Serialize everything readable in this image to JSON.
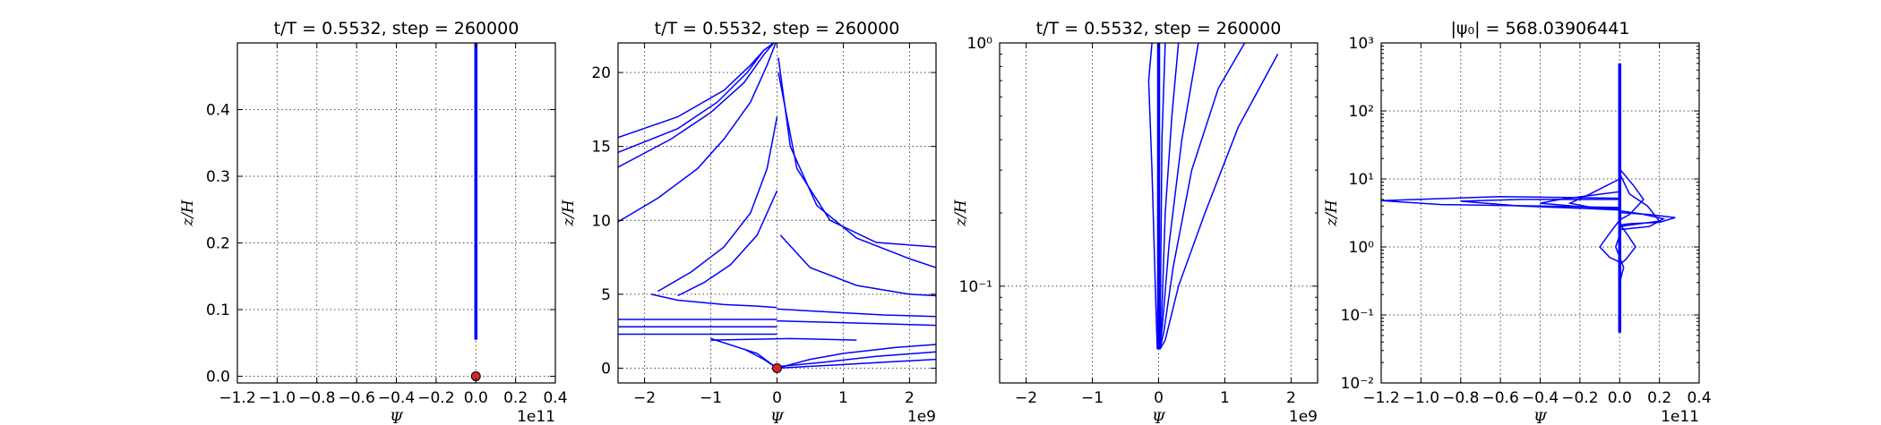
{
  "chart_data": [
    {
      "type": "line",
      "title": "t/T = 0.5532, step = 260000",
      "xlabel": "Ψ",
      "ylabel": "z/H",
      "xscale": "linear",
      "yscale": "linear",
      "xlim": [
        -1.2,
        0.4
      ],
      "ylim": [
        -0.01,
        0.5
      ],
      "x_multiplier": "1e11",
      "xticks": [
        "−1.2",
        "−1.0",
        "−0.8",
        "−0.6",
        "−0.4",
        "−0.2",
        "0.0",
        "0.2",
        "0.4"
      ],
      "yticks": [
        "0.0",
        "0.1",
        "0.2",
        "0.3",
        "0.4"
      ],
      "grid": true,
      "series": [
        {
          "color": "#0000ff",
          "x": [
            0.0,
            0.0,
            0.0
          ],
          "y": [
            0.055,
            0.25,
            0.5
          ]
        }
      ],
      "marker": {
        "x": 0.0,
        "y": 0.0,
        "color": "#d62728"
      }
    },
    {
      "type": "line",
      "title": "t/T = 0.5532, step = 260000",
      "xlabel": "Ψ",
      "ylabel": "z/H",
      "xscale": "linear",
      "yscale": "linear",
      "xlim": [
        -2.4,
        2.4
      ],
      "ylim": [
        -1,
        22
      ],
      "x_multiplier": "1e9",
      "xticks": [
        "−2",
        "−1",
        "0",
        "1",
        "2"
      ],
      "yticks": [
        "0",
        "5",
        "10",
        "15",
        "20"
      ],
      "grid": true,
      "series": [
        {
          "color": "#0000ff",
          "x": [
            -2.4,
            -1.5,
            -0.8,
            -0.4,
            -0.2,
            -0.05,
            0.0
          ],
          "y": [
            15.6,
            17.0,
            18.8,
            20.5,
            21.5,
            22.0,
            22.0
          ]
        },
        {
          "color": "#0000ff",
          "x": [
            -2.4,
            -1.5,
            -0.9,
            -0.45,
            -0.2,
            -0.05
          ],
          "y": [
            14.6,
            16.2,
            18.0,
            20.0,
            21.5,
            22.0
          ]
        },
        {
          "color": "#0000ff",
          "x": [
            -2.4,
            -1.6,
            -1.0,
            -0.5,
            -0.2,
            -0.05
          ],
          "y": [
            13.6,
            15.5,
            17.3,
            19.3,
            21.2,
            22.0
          ]
        },
        {
          "color": "#0000ff",
          "x": [
            -2.4,
            -1.8,
            -1.2,
            -0.8,
            -0.4,
            -0.15,
            -0.02
          ],
          "y": [
            9.9,
            11.5,
            13.5,
            15.5,
            18.0,
            20.5,
            22.0
          ]
        },
        {
          "color": "#0000ff",
          "x": [
            -1.8,
            -1.3,
            -0.8,
            -0.4,
            -0.15,
            0.0
          ],
          "y": [
            5.2,
            6.5,
            8.2,
            10.5,
            13.5,
            17.0
          ]
        },
        {
          "color": "#0000ff",
          "x": [
            -1.5,
            -1.1,
            -0.7,
            -0.3,
            0.0
          ],
          "y": [
            4.9,
            5.8,
            7.0,
            9.0,
            12.0
          ]
        },
        {
          "color": "#0000ff",
          "x": [
            -1.9,
            -1.5,
            -0.8,
            -0.3,
            0.0
          ],
          "y": [
            5.0,
            4.6,
            4.3,
            4.2,
            4.1
          ]
        },
        {
          "color": "#0000ff",
          "x": [
            0.02,
            0.2,
            0.6,
            1.2,
            2.0,
            2.4
          ],
          "y": [
            21.0,
            15.0,
            11.0,
            8.8,
            7.4,
            6.8
          ]
        },
        {
          "color": "#0000ff",
          "x": [
            0.02,
            0.3,
            0.8,
            1.5,
            2.4
          ],
          "y": [
            20.0,
            13.5,
            10.0,
            8.5,
            8.2
          ]
        },
        {
          "color": "#0000ff",
          "x": [
            0.05,
            0.5,
            1.2,
            2.0,
            2.4
          ],
          "y": [
            9.0,
            6.8,
            5.6,
            5.0,
            4.9
          ]
        },
        {
          "color": "#0000ff",
          "x": [
            0.0,
            0.8,
            1.6,
            2.4
          ],
          "y": [
            4.0,
            3.8,
            3.6,
            3.5
          ]
        },
        {
          "color": "#0000ff",
          "x": [
            0.0,
            0.8,
            1.6,
            2.4
          ],
          "y": [
            3.2,
            3.1,
            3.0,
            2.9
          ]
        },
        {
          "color": "#0000ff",
          "x": [
            -2.4,
            -1.2,
            0.0
          ],
          "y": [
            3.3,
            3.3,
            3.3
          ]
        },
        {
          "color": "#0000ff",
          "x": [
            -2.4,
            -1.2,
            0.0
          ],
          "y": [
            2.8,
            2.8,
            2.8
          ]
        },
        {
          "color": "#0000ff",
          "x": [
            -2.4,
            -1.2,
            0.0
          ],
          "y": [
            2.3,
            2.3,
            2.3
          ]
        },
        {
          "color": "#0000ff",
          "x": [
            -1.0,
            -0.3,
            0.0
          ],
          "y": [
            2.0,
            1.0,
            0.0
          ]
        },
        {
          "color": "#0000ff",
          "x": [
            -0.5,
            -0.2,
            0.0
          ],
          "y": [
            1.3,
            0.6,
            0.0
          ]
        },
        {
          "color": "#0000ff",
          "x": [
            0.0,
            0.5,
            1.0,
            1.8,
            2.4
          ],
          "y": [
            0.0,
            0.6,
            1.0,
            1.4,
            1.6
          ]
        },
        {
          "color": "#0000ff",
          "x": [
            0.0,
            0.7,
            1.5,
            2.4
          ],
          "y": [
            0.1,
            0.4,
            0.8,
            1.1
          ]
        },
        {
          "color": "#0000ff",
          "x": [
            0.0,
            0.8,
            1.6,
            2.4
          ],
          "y": [
            0.0,
            0.2,
            0.4,
            0.6
          ]
        },
        {
          "color": "#0000ff",
          "x": [
            -1.0,
            0.2,
            1.2
          ],
          "y": [
            1.9,
            2.0,
            1.9
          ]
        }
      ],
      "marker": {
        "x": 0.0,
        "y": 0.0,
        "color": "#d62728"
      }
    },
    {
      "type": "line",
      "title": "t/T = 0.5532, step = 260000",
      "xlabel": "Ψ",
      "ylabel": "z/H",
      "xscale": "linear",
      "yscale": "log",
      "xlim": [
        -2.4,
        2.4
      ],
      "ylim": [
        0.04,
        1.0
      ],
      "x_multiplier": "1e9",
      "xticks": [
        "−2",
        "−1",
        "0",
        "1",
        "2"
      ],
      "yticks": [
        "10⁻¹",
        "10⁰"
      ],
      "grid": true,
      "series": [
        {
          "color": "#0000ff",
          "x": [
            0.02,
            0.1,
            0.3,
            0.7,
            1.2,
            1.8
          ],
          "y": [
            0.055,
            0.06,
            0.1,
            0.2,
            0.45,
            0.9
          ]
        },
        {
          "color": "#0000ff",
          "x": [
            0.02,
            0.08,
            0.22,
            0.5,
            0.9,
            1.3
          ],
          "y": [
            0.055,
            0.065,
            0.12,
            0.3,
            0.65,
            1.0
          ]
        },
        {
          "color": "#0000ff",
          "x": [
            0.02,
            0.06,
            0.16,
            0.35,
            0.6
          ],
          "y": [
            0.055,
            0.07,
            0.15,
            0.4,
            1.0
          ]
        },
        {
          "color": "#0000ff",
          "x": [
            0.02,
            0.05,
            0.1,
            0.2,
            0.3
          ],
          "y": [
            0.055,
            0.08,
            0.2,
            0.5,
            1.0
          ]
        },
        {
          "color": "#0000ff",
          "x": [
            0.02,
            0.03,
            0.05,
            0.1
          ],
          "y": [
            0.055,
            0.1,
            0.4,
            1.0
          ]
        },
        {
          "color": "#0000ff",
          "x": [
            -0.02,
            -0.05,
            -0.1,
            -0.15,
            -0.1
          ],
          "y": [
            0.055,
            0.1,
            0.3,
            0.7,
            1.0
          ]
        },
        {
          "color": "#0000ff",
          "x": [
            0.0,
            0.0,
            0.0
          ],
          "y": [
            0.055,
            0.3,
            1.0
          ]
        }
      ]
    },
    {
      "type": "line",
      "title": "|ψ₀| = 568.03906441",
      "xlabel": "Ψ",
      "ylabel": "z/H",
      "xscale": "linear",
      "yscale": "log",
      "xlim": [
        -1.2,
        0.4
      ],
      "ylim": [
        0.01,
        1000
      ],
      "x_multiplier": "1e11",
      "xticks": [
        "−1.2",
        "−1.0",
        "−0.8",
        "−0.6",
        "−0.4",
        "−0.2",
        "0.0",
        "0.2",
        "0.4"
      ],
      "yticks": [
        "10⁻²",
        "10⁻¹",
        "10⁰",
        "10¹",
        "10²",
        "10³"
      ],
      "grid": true,
      "series": [
        {
          "color": "#0000ff",
          "x": [
            0.0,
            0.0,
            0.0,
            0.0
          ],
          "y": [
            0.055,
            1.0,
            50,
            500
          ]
        },
        {
          "color": "#0000ff",
          "x": [
            0.0,
            -0.6,
            -1.2,
            -0.9,
            -0.4,
            0.0
          ],
          "y": [
            5.2,
            5.5,
            4.8,
            4.2,
            4.0,
            3.8
          ]
        },
        {
          "color": "#0000ff",
          "x": [
            0.0,
            -0.5,
            -0.8,
            -0.5,
            -0.1,
            0.0
          ],
          "y": [
            5.0,
            5.0,
            4.7,
            4.0,
            3.6,
            3.6
          ]
        },
        {
          "color": "#0000ff",
          "x": [
            0.0,
            -0.3,
            -0.4,
            -0.15,
            0.0
          ],
          "y": [
            6.5,
            5.0,
            4.4,
            3.8,
            3.7
          ]
        },
        {
          "color": "#0000ff",
          "x": [
            0.0,
            -0.15,
            -0.25,
            -0.1,
            0.0
          ],
          "y": [
            10.0,
            6.0,
            4.4,
            3.6,
            3.5
          ]
        },
        {
          "color": "#0000ff",
          "x": [
            0.0,
            0.15,
            0.28,
            0.2,
            0.05,
            0.0
          ],
          "y": [
            3.2,
            3.0,
            2.7,
            2.3,
            2.2,
            2.1
          ]
        },
        {
          "color": "#0000ff",
          "x": [
            0.0,
            0.1,
            0.22,
            0.15,
            0.0
          ],
          "y": [
            3.4,
            3.1,
            2.6,
            2.0,
            1.8
          ]
        },
        {
          "color": "#0000ff",
          "x": [
            0.0,
            0.05,
            0.14,
            0.2,
            0.0
          ],
          "y": [
            12.0,
            6.0,
            4.0,
            2.4,
            2.0
          ]
        },
        {
          "color": "#0000ff",
          "x": [
            0.0,
            0.07,
            0.12,
            0.05,
            0.0
          ],
          "y": [
            14.0,
            8.0,
            5.0,
            3.0,
            2.5
          ]
        },
        {
          "color": "#0000ff",
          "x": [
            0.0,
            -0.05,
            -0.1,
            -0.05,
            0.0
          ],
          "y": [
            2.5,
            1.6,
            1.0,
            0.7,
            0.6
          ]
        },
        {
          "color": "#0000ff",
          "x": [
            0.0,
            0.04,
            0.08,
            0.03,
            0.0
          ],
          "y": [
            2.2,
            1.5,
            1.0,
            0.65,
            0.55
          ]
        },
        {
          "color": "#0000ff",
          "x": [
            0.0,
            -0.02,
            0.02,
            0.0
          ],
          "y": [
            1.5,
            1.0,
            0.5,
            0.3
          ]
        }
      ]
    }
  ]
}
